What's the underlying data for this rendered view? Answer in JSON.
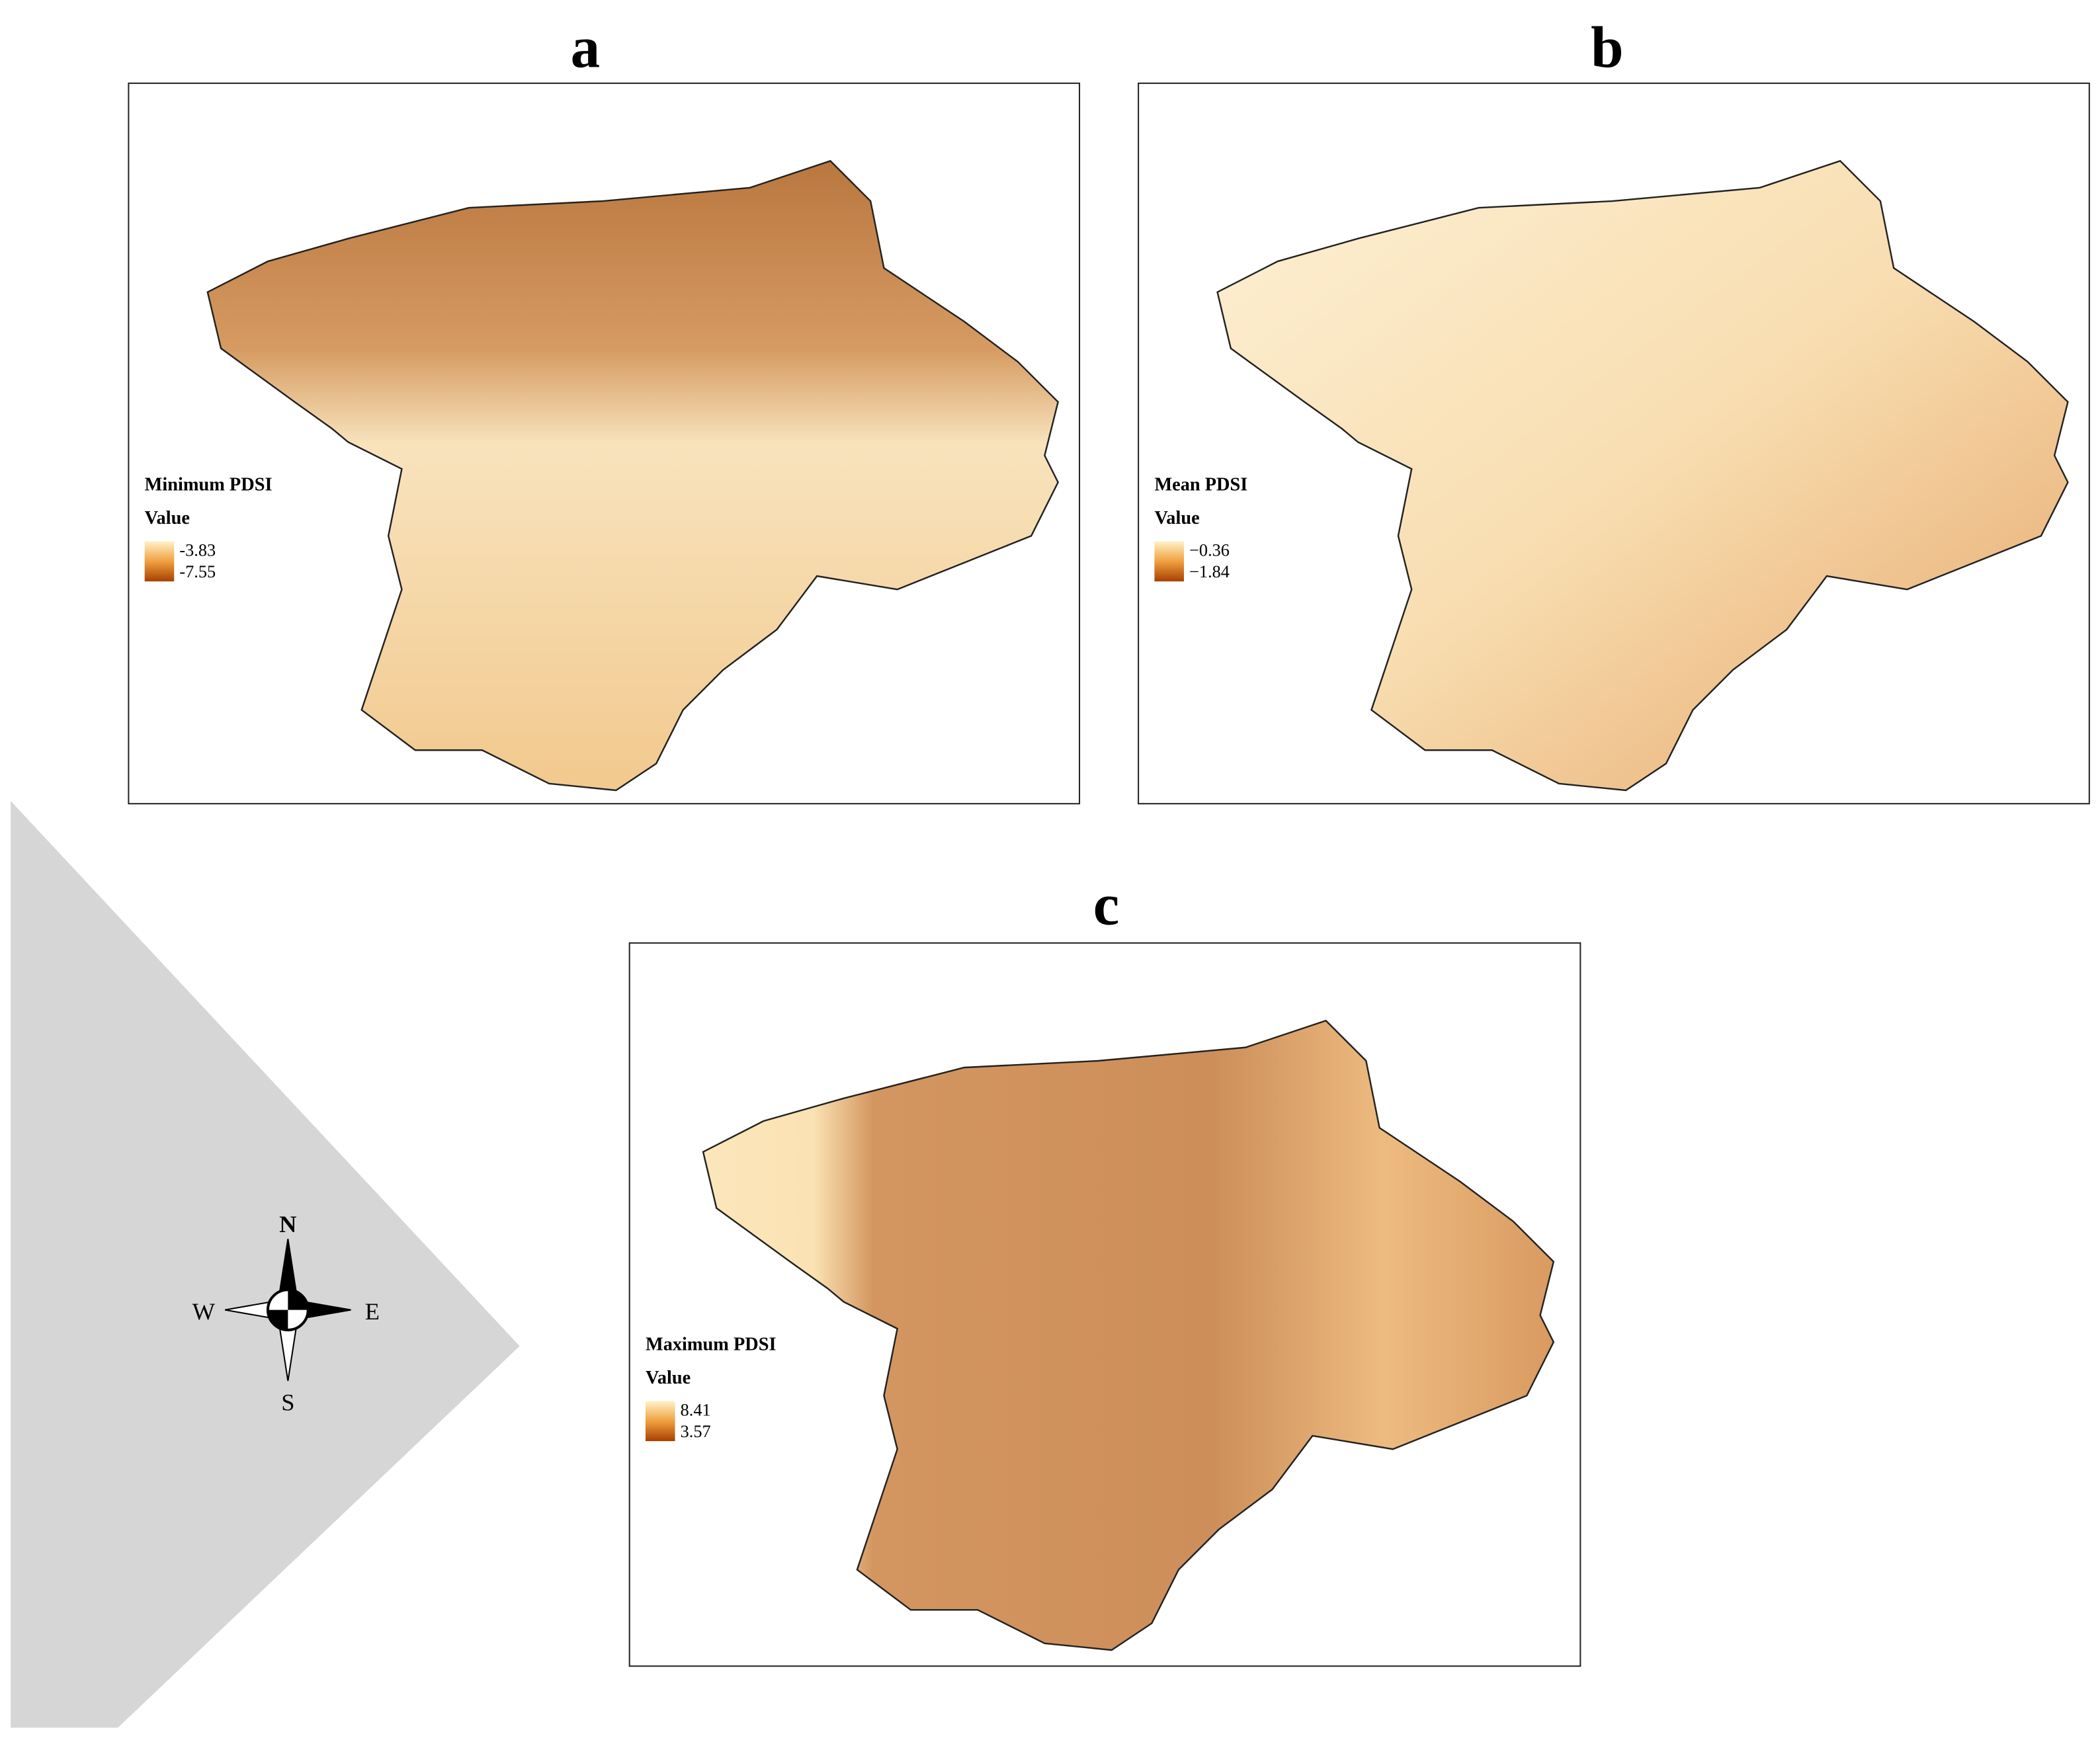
{
  "panels": [
    {
      "label": "a",
      "legend_title": "Minimum PDSI",
      "legend_subtitle": "Value",
      "legend_high": "-3.83",
      "legend_low": "-7.55"
    },
    {
      "label": "b",
      "legend_title": "Mean PDSI",
      "legend_subtitle": "Value",
      "legend_high": "−0.36",
      "legend_low": "−1.84"
    },
    {
      "label": "c",
      "legend_title": "Maximum PDSI",
      "legend_subtitle": "Value",
      "legend_high": "8.41",
      "legend_low": "3.57"
    }
  ],
  "compass": {
    "north": "N",
    "south": "S",
    "east": "E",
    "west": "W"
  }
}
